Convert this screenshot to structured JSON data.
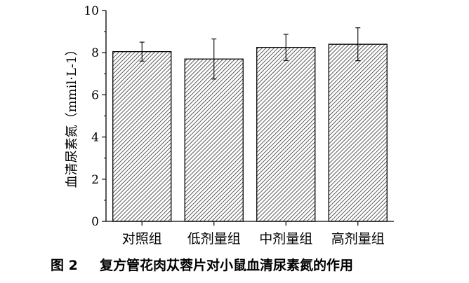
{
  "chart_data": {
    "type": "bar",
    "categories": [
      "对照组",
      "低剂量组",
      "中剂量组",
      "高剂量组"
    ],
    "values": [
      8.05,
      7.7,
      8.25,
      8.4
    ],
    "error_bars": [
      0.45,
      0.95,
      0.62,
      0.78
    ],
    "ylabel": "血清尿素氮（mmil·L-1）",
    "ylim": [
      0,
      10
    ],
    "yticks": [
      "0",
      "2",
      "4",
      "6",
      "8",
      "10"
    ],
    "grid": false,
    "fill": "hatched"
  },
  "caption": {
    "label": "图 2",
    "text": "复方管花肉苁蓉片对小鼠血清尿素氮的作用"
  },
  "colors": {
    "bar_stroke": "#000000",
    "hatch_line": "#333333",
    "background": "#ffffff"
  }
}
